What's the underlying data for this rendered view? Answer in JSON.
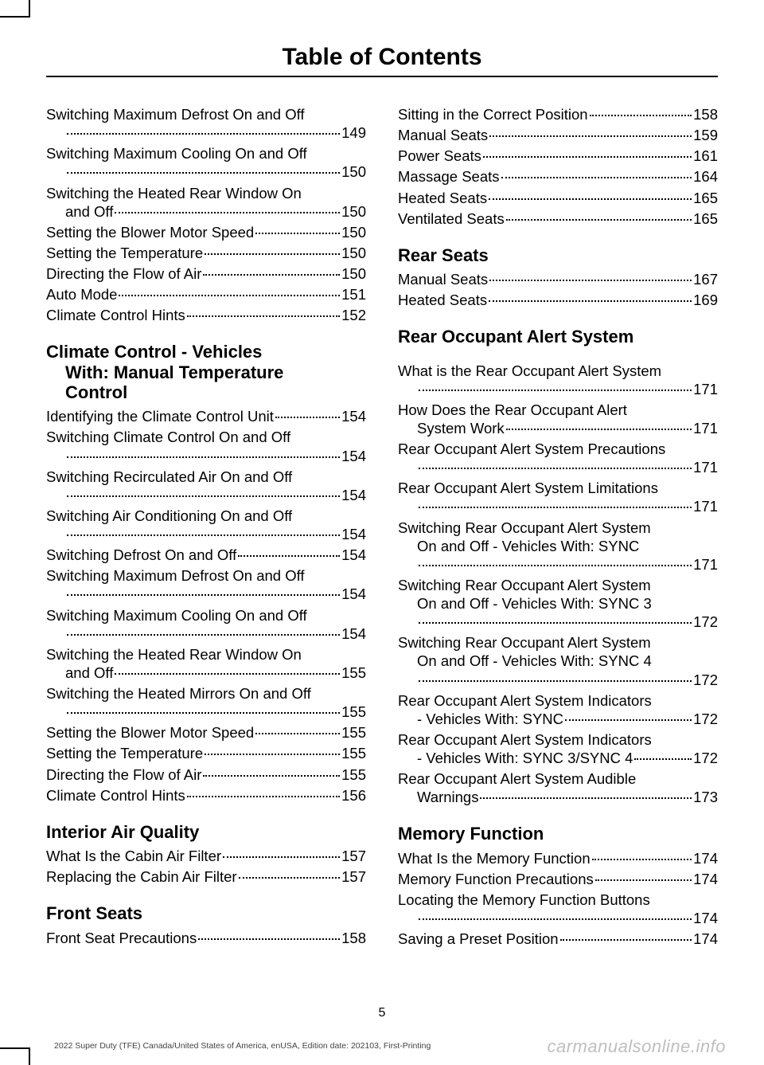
{
  "header": {
    "title": "Table of Contents"
  },
  "page_number": "5",
  "footer_left": "2022 Super Duty (TFE) Canada/United States of America, enUSA, Edition date: 202103, First-Printing",
  "footer_right": "carmanualsonline.info",
  "left": {
    "items_top": [
      {
        "t": "Switching Maximum Defrost On and Off",
        "cont": "",
        "p": "149"
      },
      {
        "t": "Switching Maximum Cooling On and Off",
        "cont": "",
        "p": "150"
      },
      {
        "t": "Switching the Heated Rear Window On",
        "cont": "and Off",
        "p": "150"
      },
      {
        "t": "Setting the Blower Motor Speed",
        "p": "150"
      },
      {
        "t": "Setting the Temperature",
        "p": "150"
      },
      {
        "t": "Directing the Flow of Air",
        "p": "150"
      },
      {
        "t": "Auto Mode",
        "p": "151"
      },
      {
        "t": "Climate Control Hints",
        "p": "152"
      }
    ],
    "section1": {
      "h1": "Climate Control - Vehicles",
      "h2": "With: Manual Temperature",
      "h3": "Control"
    },
    "items_s1": [
      {
        "t": "Identifying the Climate Control Unit",
        "p": "154"
      },
      {
        "t": "Switching Climate Control On and Off",
        "cont": "",
        "p": "154"
      },
      {
        "t": "Switching Recirculated Air On and Off",
        "cont": "",
        "p": "154"
      },
      {
        "t": "Switching Air Conditioning On and Off",
        "cont": "",
        "p": "154"
      },
      {
        "t": "Switching Defrost On and Off",
        "p": "154"
      },
      {
        "t": "Switching Maximum Defrost On and Off",
        "cont": "",
        "p": "154"
      },
      {
        "t": "Switching Maximum Cooling On and Off",
        "cont": "",
        "p": "154"
      },
      {
        "t": "Switching the Heated Rear Window On",
        "cont": "and Off",
        "p": "155"
      },
      {
        "t": "Switching the Heated Mirrors On and Off",
        "cont": "",
        "p": "155"
      },
      {
        "t": "Setting the Blower Motor Speed",
        "p": "155"
      },
      {
        "t": "Setting the Temperature",
        "p": "155"
      },
      {
        "t": "Directing the Flow of Air",
        "p": "155"
      },
      {
        "t": "Climate Control Hints",
        "p": "156"
      }
    ],
    "section2": {
      "h": "Interior Air Quality"
    },
    "items_s2": [
      {
        "t": "What Is the Cabin Air Filter",
        "p": "157"
      },
      {
        "t": "Replacing the Cabin Air Filter",
        "p": "157"
      }
    ],
    "section3": {
      "h": "Front Seats"
    },
    "items_s3": [
      {
        "t": "Front Seat Precautions",
        "p": "158"
      }
    ]
  },
  "right": {
    "items_top": [
      {
        "t": "Sitting in the Correct Position",
        "p": "158"
      },
      {
        "t": "Manual Seats",
        "p": "159"
      },
      {
        "t": "Power Seats",
        "p": "161"
      },
      {
        "t": "Massage Seats",
        "p": "164"
      },
      {
        "t": "Heated Seats",
        "p": "165"
      },
      {
        "t": "Ventilated Seats",
        "p": "165"
      }
    ],
    "section1": {
      "h": "Rear Seats"
    },
    "items_s1": [
      {
        "t": "Manual Seats",
        "p": "167"
      },
      {
        "t": "Heated Seats",
        "p": "169"
      }
    ],
    "section2": {
      "h": "Rear Occupant Alert System"
    },
    "items_s2": [
      {
        "t": "What is the Rear Occupant Alert System",
        "cont": "",
        "p": "171"
      },
      {
        "t": "How Does the Rear Occupant Alert",
        "cont": "System Work",
        "p": "171"
      },
      {
        "t": "Rear Occupant Alert System Precautions",
        "cont": "",
        "p": "171"
      },
      {
        "t": "Rear Occupant Alert System Limitations",
        "cont": "",
        "p": "171"
      },
      {
        "t": "Switching Rear Occupant Alert System",
        "cont": "On and Off - Vehicles With: SYNC",
        "cont2": "",
        "p": "171"
      },
      {
        "t": "Switching Rear Occupant Alert System",
        "cont": "On and Off - Vehicles With: SYNC 3",
        "cont2": "",
        "p": "172"
      },
      {
        "t": "Switching Rear Occupant Alert System",
        "cont": "On and Off - Vehicles With: SYNC 4",
        "cont2": "",
        "p": "172"
      },
      {
        "t": "Rear Occupant Alert System Indicators",
        "cont": "- Vehicles With: SYNC",
        "p": "172"
      },
      {
        "t": "Rear Occupant Alert System Indicators",
        "cont": "- Vehicles With: SYNC 3/SYNC 4",
        "p": "172"
      },
      {
        "t": "Rear Occupant Alert System Audible",
        "cont": "Warnings",
        "p": "173"
      }
    ],
    "section3": {
      "h": "Memory Function"
    },
    "items_s3": [
      {
        "t": "What Is the Memory Function",
        "p": "174"
      },
      {
        "t": "Memory Function Precautions",
        "p": "174"
      },
      {
        "t": "Locating the Memory Function Buttons",
        "cont": "",
        "p": "174"
      },
      {
        "t": "Saving a Preset Position",
        "p": "174"
      }
    ]
  }
}
